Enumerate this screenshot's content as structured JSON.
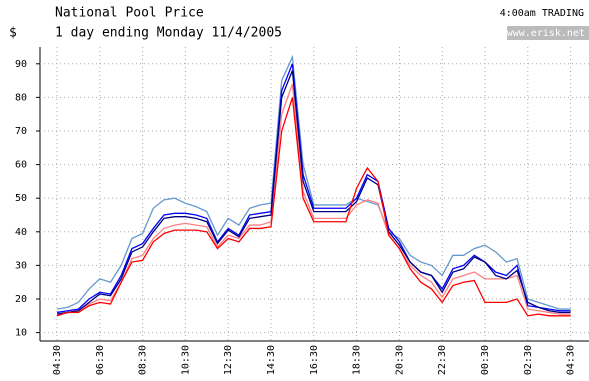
{
  "chart_data": {
    "type": "line",
    "title": "National Pool Price",
    "subtitle": "1 day ending Monday 11/4/2005",
    "y_label": "$",
    "status": "4:00am TRADING",
    "watermark": "www.erisk.net",
    "categories": [
      "04:30",
      null,
      null,
      null,
      "06:30",
      null,
      null,
      null,
      "08:30",
      null,
      null,
      null,
      "10:30",
      null,
      null,
      null,
      "12:30",
      null,
      null,
      null,
      "14:30",
      null,
      null,
      null,
      "16:30",
      null,
      null,
      null,
      "18:30",
      null,
      null,
      null,
      "20:30",
      null,
      null,
      null,
      "22:30",
      null,
      null,
      null,
      "00:30",
      null,
      null,
      null,
      "02:30",
      null,
      null,
      null,
      "04:30"
    ],
    "ylim": [
      7.5,
      95
    ],
    "yticks": [
      10,
      20,
      30,
      40,
      50,
      60,
      70,
      80,
      90
    ],
    "grid": true,
    "series": [
      {
        "color": "#6699cc",
        "values": [
          17,
          17.5,
          19,
          23,
          26,
          25,
          30,
          38,
          39.5,
          47,
          49.5,
          50,
          48.5,
          47.5,
          46,
          39,
          44,
          42,
          47,
          48,
          48.5,
          85,
          92,
          60,
          48,
          48,
          48,
          48,
          50,
          49,
          48,
          40,
          38,
          33,
          31,
          30,
          27,
          33,
          33,
          35,
          36,
          34,
          31,
          32,
          20,
          19,
          18,
          17,
          17
        ]
      },
      {
        "color": "#ff8080",
        "values": [
          15.5,
          16,
          16.5,
          18.5,
          20,
          19.5,
          25,
          32,
          33,
          38,
          41,
          42,
          42.5,
          42,
          41.5,
          35.5,
          39,
          38,
          42,
          42,
          43,
          75,
          84,
          52,
          44,
          44,
          44,
          44,
          48,
          49.5,
          48.5,
          39,
          35,
          30,
          27,
          25,
          20.5,
          26,
          27,
          28,
          26,
          26,
          26,
          27,
          17,
          16.5,
          16,
          15.5,
          15.5
        ]
      },
      {
        "color": "#0000ff",
        "values": [
          16,
          16.5,
          17,
          20,
          22,
          21.5,
          27,
          35,
          36.5,
          41,
          45,
          45.5,
          45.5,
          45,
          44,
          37,
          41,
          39,
          45,
          45.5,
          46,
          82,
          90,
          57,
          47,
          47,
          47,
          47,
          50,
          57,
          55,
          41,
          37,
          31,
          28,
          27,
          23,
          29,
          30,
          33,
          31,
          28,
          27,
          30,
          18,
          17.5,
          17,
          16.5,
          16.5
        ]
      },
      {
        "color": "#000080",
        "values": [
          15.5,
          16,
          16.5,
          19,
          21.5,
          21,
          26,
          34,
          35.5,
          40,
          44,
          44.5,
          44.5,
          44,
          43,
          36.5,
          40.5,
          38.5,
          44,
          44.5,
          45,
          80,
          88,
          55,
          46,
          46,
          46,
          46,
          49,
          56,
          54,
          40,
          36,
          31,
          28,
          27,
          22,
          28,
          29,
          32.5,
          31,
          27,
          26,
          28.5,
          19,
          17.5,
          16.5,
          16,
          16
        ]
      },
      {
        "color": "#ff0000",
        "values": [
          15,
          16,
          16,
          18,
          19,
          18.5,
          25,
          31,
          31.5,
          37,
          39.5,
          40.5,
          40.5,
          40.5,
          40,
          35,
          38,
          37,
          41,
          41,
          41.5,
          70,
          80,
          50,
          43,
          43,
          43,
          43,
          53,
          59,
          55,
          39,
          35,
          29,
          25,
          23,
          19,
          24,
          25,
          25.5,
          19,
          19,
          19,
          20,
          15,
          15.5,
          15,
          15,
          15
        ]
      }
    ]
  }
}
